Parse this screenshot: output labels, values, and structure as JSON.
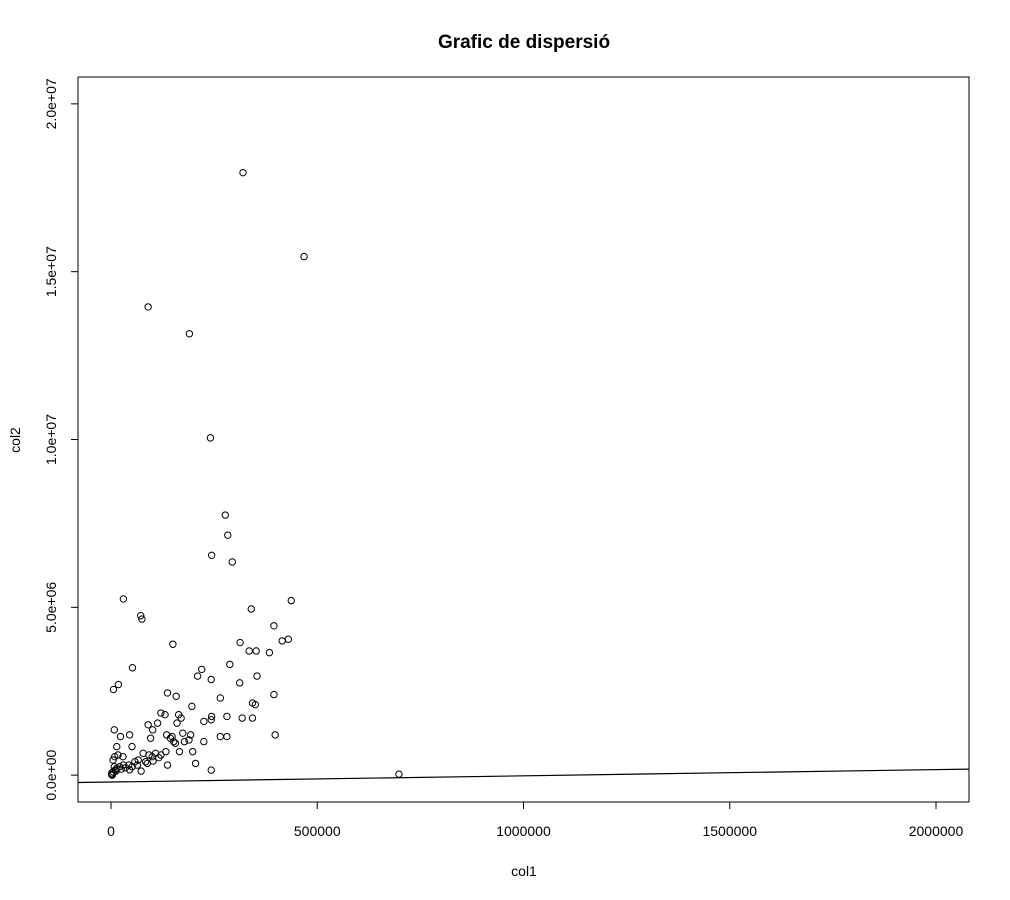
{
  "chart_data": {
    "type": "scatter",
    "title": "Grafic de dispersió",
    "xlabel": "col1",
    "ylabel": "col2",
    "xlim": [
      -80000,
      2080000
    ],
    "ylim": [
      -800000,
      20800000
    ],
    "x_ticks": [
      {
        "value": 0,
        "label": "0"
      },
      {
        "value": 500000,
        "label": "500000"
      },
      {
        "value": 1000000,
        "label": "1000000"
      },
      {
        "value": 1500000,
        "label": "1500000"
      },
      {
        "value": 2000000,
        "label": "2000000"
      }
    ],
    "y_ticks": [
      {
        "value": 0,
        "label": "0.0e+00"
      },
      {
        "value": 5000000,
        "label": "5.0e+06"
      },
      {
        "value": 10000000,
        "label": "1.0e+07"
      },
      {
        "value": 15000000,
        "label": "1.5e+07"
      },
      {
        "value": 20000000,
        "label": "2.0e+07"
      }
    ],
    "grid": false,
    "regression_line": {
      "x": [
        -80000,
        2080000
      ],
      "y": [
        -220000,
        180000
      ]
    },
    "points": [
      [
        320000,
        17950000
      ],
      [
        468000,
        15450000
      ],
      [
        90000,
        13950000
      ],
      [
        190000,
        13150000
      ],
      [
        241000,
        10050000
      ],
      [
        277000,
        7750000
      ],
      [
        283000,
        7150000
      ],
      [
        244000,
        6550000
      ],
      [
        294000,
        6350000
      ],
      [
        30000,
        5250000
      ],
      [
        437000,
        5200000
      ],
      [
        340000,
        4950000
      ],
      [
        72000,
        4750000
      ],
      [
        75000,
        4650000
      ],
      [
        395000,
        4450000
      ],
      [
        430000,
        4050000
      ],
      [
        415000,
        4000000
      ],
      [
        313000,
        3950000
      ],
      [
        150000,
        3900000
      ],
      [
        335000,
        3700000
      ],
      [
        352000,
        3700000
      ],
      [
        384000,
        3650000
      ],
      [
        288000,
        3300000
      ],
      [
        52000,
        3200000
      ],
      [
        220000,
        3150000
      ],
      [
        210000,
        2950000
      ],
      [
        243000,
        2850000
      ],
      [
        354000,
        2950000
      ],
      [
        312000,
        2750000
      ],
      [
        18000,
        2700000
      ],
      [
        6000,
        2550000
      ],
      [
        137000,
        2450000
      ],
      [
        158000,
        2350000
      ],
      [
        395000,
        2400000
      ],
      [
        265000,
        2300000
      ],
      [
        343000,
        2150000
      ],
      [
        350000,
        2100000
      ],
      [
        196000,
        2050000
      ],
      [
        121000,
        1850000
      ],
      [
        131000,
        1800000
      ],
      [
        164000,
        1800000
      ],
      [
        170000,
        1700000
      ],
      [
        281000,
        1750000
      ],
      [
        244000,
        1750000
      ],
      [
        318000,
        1700000
      ],
      [
        343000,
        1700000
      ],
      [
        225000,
        1600000
      ],
      [
        243000,
        1650000
      ],
      [
        90000,
        1500000
      ],
      [
        113000,
        1550000
      ],
      [
        160000,
        1550000
      ],
      [
        101000,
        1350000
      ],
      [
        8000,
        1350000
      ],
      [
        174000,
        1250000
      ],
      [
        193000,
        1200000
      ],
      [
        135000,
        1200000
      ],
      [
        148000,
        1150000
      ],
      [
        45000,
        1200000
      ],
      [
        23000,
        1150000
      ],
      [
        96000,
        1100000
      ],
      [
        265000,
        1150000
      ],
      [
        281000,
        1150000
      ],
      [
        398000,
        1200000
      ],
      [
        144000,
        1100000
      ],
      [
        152000,
        1000000
      ],
      [
        178000,
        1000000
      ],
      [
        225000,
        1000000
      ],
      [
        156000,
        950000
      ],
      [
        14000,
        850000
      ],
      [
        51000,
        850000
      ],
      [
        189000,
        1050000
      ],
      [
        133000,
        700000
      ],
      [
        166000,
        700000
      ],
      [
        198000,
        700000
      ],
      [
        9000,
        550000
      ],
      [
        17000,
        600000
      ],
      [
        29000,
        550000
      ],
      [
        5000,
        450000
      ],
      [
        66000,
        450000
      ],
      [
        58000,
        400000
      ],
      [
        78000,
        650000
      ],
      [
        92000,
        600000
      ],
      [
        100000,
        550000
      ],
      [
        108000,
        650000
      ],
      [
        121000,
        600000
      ],
      [
        84000,
        400000
      ],
      [
        30000,
        300000
      ],
      [
        43000,
        300000
      ],
      [
        51000,
        250000
      ],
      [
        21000,
        250000
      ],
      [
        8000,
        250000
      ],
      [
        10000,
        150000
      ],
      [
        5000,
        100000
      ],
      [
        2000,
        60000
      ],
      [
        1500,
        20000
      ],
      [
        3000,
        0
      ],
      [
        12000,
        120000
      ],
      [
        14000,
        200000
      ],
      [
        25000,
        180000
      ],
      [
        35000,
        220000
      ],
      [
        45000,
        160000
      ],
      [
        64000,
        300000
      ],
      [
        88000,
        350000
      ],
      [
        102000,
        420000
      ],
      [
        116000,
        520000
      ],
      [
        73000,
        120000
      ],
      [
        137000,
        300000
      ],
      [
        205000,
        350000
      ],
      [
        243000,
        150000
      ],
      [
        698000,
        30000
      ]
    ]
  }
}
